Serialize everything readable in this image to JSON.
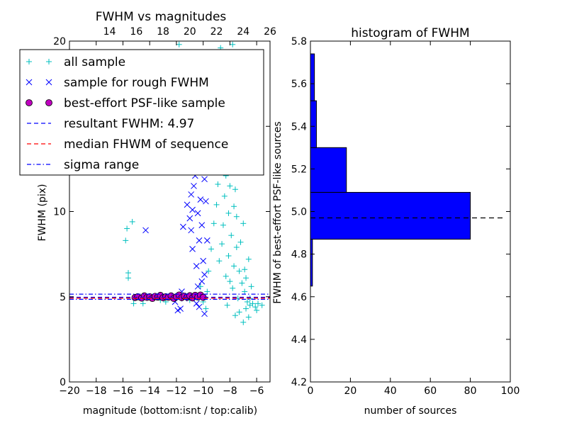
{
  "chart_data": [
    {
      "type": "scatter",
      "title": "FWHM vs magnitudes",
      "xlabel": "magnitude (bottom:isnt / top:calib)",
      "ylabel": "FWHM (pix)",
      "xlim": [
        -20,
        -5
      ],
      "ylim": [
        0,
        20
      ],
      "xticks": [
        -20,
        -18,
        -16,
        -14,
        -12,
        -10,
        -8,
        -6
      ],
      "xtick_labels": [
        "−20",
        "−18",
        "−16",
        "−14",
        "−12",
        "−10",
        "−8",
        "−6"
      ],
      "yticks": [
        0,
        5,
        10,
        15,
        20
      ],
      "ytick_labels": [
        "0",
        "5",
        "10",
        "15",
        "20"
      ],
      "top_axis": {
        "label_source": "calib",
        "ticks": [
          14,
          16,
          18,
          20,
          22,
          24,
          26
        ],
        "tick_labels": [
          "14",
          "16",
          "18",
          "20",
          "22",
          "24",
          "26"
        ]
      },
      "legend": {
        "placement": "upper-left",
        "entries": [
          "all sample",
          "sample for rough FWHM",
          "best-effort PSF-like sample",
          "resultant FWHM: 4.97",
          "median FHWM of sequence",
          "sigma range"
        ]
      },
      "series": [
        {
          "name": "all sample",
          "marker": "+",
          "color": "#00bfbf",
          "points": [
            [
              -15.8,
              8.3
            ],
            [
              -15.7,
              9.0
            ],
            [
              -15.6,
              6.4
            ],
            [
              -15.6,
              6.1
            ],
            [
              -15.3,
              9.4
            ],
            [
              -15.2,
              4.6
            ],
            [
              -14.5,
              4.6
            ],
            [
              -13.2,
              4.8
            ],
            [
              -12.8,
              4.7
            ],
            [
              -12.2,
              4.9
            ],
            [
              -11.5,
              5.0
            ],
            [
              -11.0,
              4.8
            ],
            [
              -10.6,
              5.0
            ],
            [
              -10.3,
              4.9
            ],
            [
              -10.2,
              5.6
            ],
            [
              -10.0,
              4.7
            ],
            [
              -9.8,
              4.3
            ],
            [
              -9.7,
              5.3
            ],
            [
              -9.6,
              6.5
            ],
            [
              -9.4,
              7.8
            ],
            [
              -9.2,
              9.3
            ],
            [
              -9.0,
              10.4
            ],
            [
              -8.9,
              11.6
            ],
            [
              -8.8,
              13.2
            ],
            [
              -8.7,
              14.5
            ],
            [
              -8.6,
              15.8
            ],
            [
              -8.5,
              9.2
            ],
            [
              -8.4,
              10.9
            ],
            [
              -8.3,
              12.1
            ],
            [
              -8.2,
              16.2
            ],
            [
              -8.1,
              14.0
            ],
            [
              -8.0,
              11.5
            ],
            [
              -7.9,
              17.5
            ],
            [
              -7.8,
              19.8
            ],
            [
              -7.7,
              18.5
            ],
            [
              -8.1,
              7.4
            ],
            [
              -7.9,
              8.6
            ],
            [
              -7.7,
              6.8
            ],
            [
              -7.5,
              7.9
            ],
            [
              -7.3,
              6.5
            ],
            [
              -7.1,
              5.8
            ],
            [
              -6.9,
              5.3
            ],
            [
              -6.7,
              4.7
            ],
            [
              -6.5,
              4.5
            ],
            [
              -6.3,
              4.6
            ],
            [
              -6.1,
              4.4
            ],
            [
              -5.9,
              4.6
            ],
            [
              -8.2,
              4.5
            ],
            [
              -7.6,
              3.9
            ],
            [
              -7.0,
              3.5
            ],
            [
              -6.6,
              3.8
            ],
            [
              -7.8,
              5.5
            ],
            [
              -7.4,
              4.9
            ],
            [
              -6.8,
              4.3
            ],
            [
              -8.6,
              8.1
            ],
            [
              -8.3,
              6.2
            ],
            [
              -8.0,
              5.9
            ],
            [
              -7.5,
              9.7
            ],
            [
              -7.2,
              8.2
            ],
            [
              -6.8,
              6.1
            ],
            [
              -7.9,
              12.9
            ],
            [
              -7.6,
              11.3
            ],
            [
              -8.4,
              18.4
            ],
            [
              -8.7,
              19.6
            ],
            [
              -11.8,
              19.8
            ],
            [
              -13.5,
              17.6
            ],
            [
              -6.5,
              4.9
            ],
            [
              -6.0,
              4.2
            ],
            [
              -5.6,
              4.5
            ],
            [
              -7.3,
              4.1
            ],
            [
              -8.8,
              7.1
            ],
            [
              -9.1,
              12.7
            ],
            [
              -8.9,
              17.1
            ],
            [
              -7.2,
              12.4
            ],
            [
              -7.0,
              9.3
            ],
            [
              -6.6,
              7.2
            ],
            [
              -7.6,
              14.8
            ],
            [
              -7.4,
              16.5
            ],
            [
              -8.5,
              13.6
            ],
            [
              -9.3,
              14.9
            ],
            [
              -8.1,
              9.9
            ],
            [
              -7.7,
              10.3
            ],
            [
              -6.9,
              6.6
            ],
            [
              -6.4,
              5.6
            ]
          ]
        },
        {
          "name": "sample for rough FWHM",
          "marker": "x",
          "color": "#0000ff",
          "points": [
            [
              -14.3,
              8.9
            ],
            [
              -12.1,
              4.7
            ],
            [
              -11.9,
              4.2
            ],
            [
              -11.6,
              5.3
            ],
            [
              -11.4,
              4.9
            ],
            [
              -11.2,
              10.4
            ],
            [
              -11.0,
              9.6
            ],
            [
              -10.9,
              8.9
            ],
            [
              -10.8,
              7.8
            ],
            [
              -10.7,
              11.5
            ],
            [
              -10.6,
              12.1
            ],
            [
              -10.5,
              6.8
            ],
            [
              -10.4,
              5.6
            ],
            [
              -10.3,
              4.4
            ],
            [
              -10.2,
              13.8
            ],
            [
              -10.1,
              9.2
            ],
            [
              -10.0,
              7.1
            ],
            [
              -9.9,
              4.0
            ],
            [
              -9.9,
              11.9
            ],
            [
              -9.8,
              10.6
            ],
            [
              -9.7,
              8.3
            ],
            [
              -10.4,
              9.9
            ],
            [
              -10.6,
              13.0
            ],
            [
              -11.1,
              12.8
            ],
            [
              -10.0,
              14.6
            ],
            [
              -9.8,
              12.8
            ],
            [
              -10.2,
              10.7
            ],
            [
              -11.3,
              12.3
            ],
            [
              -10.8,
              10.1
            ],
            [
              -9.9,
              6.3
            ],
            [
              -10.1,
              5.9
            ],
            [
              -10.5,
              4.6
            ],
            [
              -11.7,
              4.3
            ],
            [
              -9.7,
              13.5
            ],
            [
              -10.3,
              8.3
            ],
            [
              -10.9,
              11.0
            ],
            [
              -11.5,
              9.1
            ]
          ]
        },
        {
          "name": "best-effort PSF-like sample",
          "marker": "o",
          "color": "#bf00bf",
          "points": [
            [
              -15.1,
              4.95
            ],
            [
              -14.9,
              5.0
            ],
            [
              -14.6,
              4.92
            ],
            [
              -14.4,
              5.05
            ],
            [
              -14.2,
              4.96
            ],
            [
              -14.0,
              5.0
            ],
            [
              -13.8,
              4.9
            ],
            [
              -13.6,
              5.02
            ],
            [
              -13.4,
              4.98
            ],
            [
              -13.2,
              5.08
            ],
            [
              -13.0,
              4.94
            ],
            [
              -12.8,
              5.0
            ],
            [
              -12.6,
              4.97
            ],
            [
              -12.4,
              5.05
            ],
            [
              -12.2,
              4.9
            ],
            [
              -12.0,
              5.0
            ],
            [
              -11.8,
              5.1
            ],
            [
              -11.6,
              4.95
            ],
            [
              -11.4,
              5.03
            ],
            [
              -11.2,
              4.97
            ],
            [
              -11.0,
              5.06
            ],
            [
              -10.8,
              4.93
            ],
            [
              -10.6,
              5.08
            ],
            [
              -10.4,
              4.99
            ],
            [
              -10.2,
              5.1
            ],
            [
              -10.0,
              4.96
            ]
          ]
        },
        {
          "name": "resultant FWHM: 4.97",
          "type": "hline",
          "y": 4.97,
          "color": "#0000ff",
          "style": "dashed"
        },
        {
          "name": "median FHWM of sequence",
          "type": "hline",
          "y": 4.92,
          "color": "#ff0000",
          "style": "dashed"
        },
        {
          "name": "sigma range",
          "type": "hlines",
          "y": [
            4.85,
            5.15
          ],
          "color": "#0000ff",
          "style": "dashdot"
        }
      ]
    },
    {
      "type": "bar",
      "orientation": "horizontal",
      "title": "histogram of FWHM",
      "xlabel": "number of sources",
      "ylabel": "FWHM of best-effort PSF-like sources",
      "xlim": [
        0,
        100
      ],
      "ylim": [
        4.2,
        5.8
      ],
      "xticks": [
        0,
        20,
        40,
        60,
        80,
        100
      ],
      "xtick_labels": [
        "0",
        "20",
        "40",
        "60",
        "80",
        "100"
      ],
      "yticks": [
        4.2,
        4.4,
        4.6,
        4.8,
        5.0,
        5.2,
        5.4,
        5.6,
        5.8
      ],
      "ytick_labels": [
        "4.2",
        "4.4",
        "4.6",
        "4.8",
        "5.0",
        "5.2",
        "5.4",
        "5.6",
        "5.8"
      ],
      "bins": [
        {
          "from": 4.65,
          "to": 4.87,
          "count": 1
        },
        {
          "from": 4.87,
          "to": 5.09,
          "count": 80
        },
        {
          "from": 5.09,
          "to": 5.3,
          "count": 18
        },
        {
          "from": 5.3,
          "to": 5.52,
          "count": 3
        },
        {
          "from": 5.52,
          "to": 5.74,
          "count": 2
        }
      ],
      "bar_color": "#0000ff",
      "reference_line": {
        "y": 4.97,
        "color": "#000000",
        "style": "dashed"
      }
    }
  ]
}
